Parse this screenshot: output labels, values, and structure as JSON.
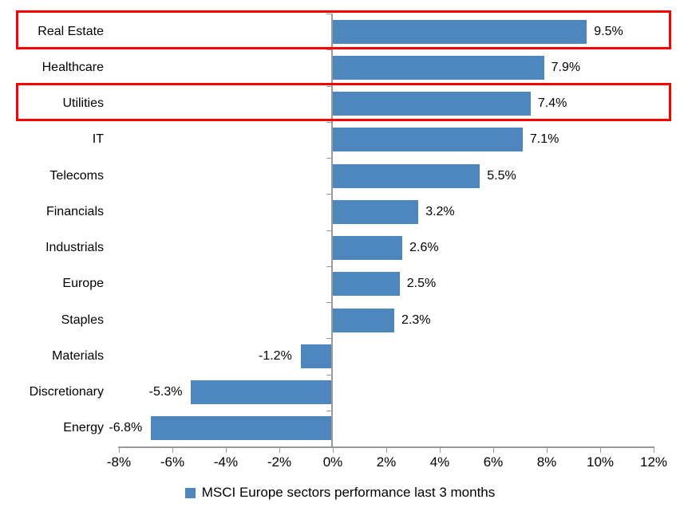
{
  "chart_data": {
    "type": "bar",
    "orientation": "horizontal",
    "title": "",
    "xlabel": "",
    "ylabel": "",
    "categories": [
      "Real Estate",
      "Healthcare",
      "Utilities",
      "IT",
      "Telecoms",
      "Financials",
      "Industrials",
      "Europe",
      "Staples",
      "Materials",
      "Discretionary",
      "Energy"
    ],
    "values": [
      9.5,
      7.9,
      7.4,
      7.1,
      5.5,
      3.2,
      2.6,
      2.5,
      2.3,
      -1.2,
      -5.3,
      -6.8
    ],
    "value_labels": [
      "9.5%",
      "7.9%",
      "7.4%",
      "7.1%",
      "5.5%",
      "3.2%",
      "2.6%",
      "2.5%",
      "2.3%",
      "-1.2%",
      "-5.3%",
      "-6.8%"
    ],
    "highlighted_categories": [
      "Real Estate",
      "Utilities"
    ],
    "x_ticks": [
      -8,
      -6,
      -4,
      -2,
      0,
      2,
      4,
      6,
      8,
      10,
      12
    ],
    "x_tick_labels": [
      "-8%",
      "-6%",
      "-4%",
      "-2%",
      "0%",
      "2%",
      "4%",
      "6%",
      "8%",
      "10%",
      "12%"
    ],
    "xlim": [
      -8,
      12
    ],
    "grid": "off",
    "legend_position": "bottom-center",
    "legend": "MSCI Europe sectors performance last 3 months",
    "colors": {
      "bar": "#4e86be",
      "highlight_border": "#ff0000",
      "axis": "#9a9a9a",
      "text": "#000000",
      "background": "#ffffff"
    }
  }
}
